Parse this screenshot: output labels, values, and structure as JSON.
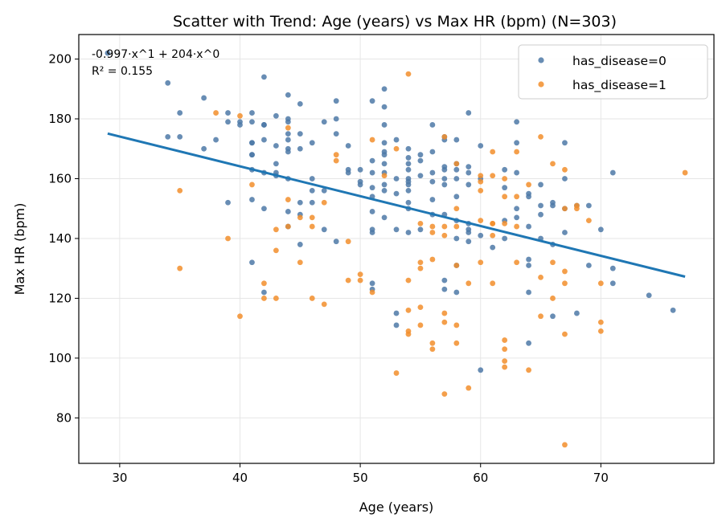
{
  "chart_data": {
    "type": "scatter",
    "title": "Scatter with Trend: Age (years) vs Max HR (bpm) (N=303)",
    "xlabel": "Age (years)",
    "ylabel": "Max HR (bpm)",
    "xlim": [
      26.6,
      79.4
    ],
    "ylim": [
      64.8,
      208.2
    ],
    "xticks": [
      30,
      40,
      50,
      60,
      70
    ],
    "yticks": [
      80,
      100,
      120,
      140,
      160,
      180,
      200
    ],
    "grid": true,
    "legend_position": "top-right",
    "annotation": [
      "-0.997·x^1 + 204·x^0",
      "R² = 0.155"
    ],
    "series": [
      {
        "name": "has_disease=0",
        "color": "#4e79a7",
        "points": [
          [
            29,
            202
          ],
          [
            34,
            192
          ],
          [
            34,
            174
          ],
          [
            35,
            182
          ],
          [
            35,
            174
          ],
          [
            37,
            187
          ],
          [
            37,
            170
          ],
          [
            38,
            173
          ],
          [
            39,
            182
          ],
          [
            39,
            179
          ],
          [
            39,
            152
          ],
          [
            40,
            179
          ],
          [
            40,
            178
          ],
          [
            41,
            182
          ],
          [
            41,
            179
          ],
          [
            41,
            172
          ],
          [
            41,
            172
          ],
          [
            41,
            168
          ],
          [
            41,
            168
          ],
          [
            41,
            163
          ],
          [
            41,
            153
          ],
          [
            41,
            132
          ],
          [
            42,
            194
          ],
          [
            42,
            178
          ],
          [
            42,
            178
          ],
          [
            42,
            173
          ],
          [
            42,
            162
          ],
          [
            42,
            150
          ],
          [
            42,
            122
          ],
          [
            43,
            181
          ],
          [
            43,
            171
          ],
          [
            43,
            165
          ],
          [
            43,
            162
          ],
          [
            43,
            161
          ],
          [
            44,
            188
          ],
          [
            44,
            180
          ],
          [
            44,
            179
          ],
          [
            44,
            175
          ],
          [
            44,
            173
          ],
          [
            44,
            170
          ],
          [
            44,
            169
          ],
          [
            44,
            160
          ],
          [
            44,
            149
          ],
          [
            44,
            144
          ],
          [
            45,
            185
          ],
          [
            45,
            175
          ],
          [
            45,
            170
          ],
          [
            45,
            152
          ],
          [
            45,
            148
          ],
          [
            45,
            138
          ],
          [
            46,
            172
          ],
          [
            46,
            160
          ],
          [
            46,
            156
          ],
          [
            46,
            152
          ],
          [
            47,
            179
          ],
          [
            47,
            156
          ],
          [
            47,
            143
          ],
          [
            48,
            186
          ],
          [
            48,
            180
          ],
          [
            48,
            175
          ],
          [
            48,
            139
          ],
          [
            49,
            171
          ],
          [
            49,
            163
          ],
          [
            49,
            162
          ],
          [
            50,
            163
          ],
          [
            50,
            159
          ],
          [
            50,
            158
          ],
          [
            51,
            186
          ],
          [
            51,
            166
          ],
          [
            51,
            162
          ],
          [
            51,
            157
          ],
          [
            51,
            154
          ],
          [
            51,
            149
          ],
          [
            51,
            143
          ],
          [
            51,
            142
          ],
          [
            51,
            125
          ],
          [
            51,
            123
          ],
          [
            52,
            190
          ],
          [
            52,
            184
          ],
          [
            52,
            178
          ],
          [
            52,
            172
          ],
          [
            52,
            169
          ],
          [
            52,
            168
          ],
          [
            52,
            165
          ],
          [
            52,
            162
          ],
          [
            52,
            158
          ],
          [
            52,
            156
          ],
          [
            52,
            147
          ],
          [
            53,
            173
          ],
          [
            53,
            160
          ],
          [
            53,
            155
          ],
          [
            53,
            143
          ],
          [
            53,
            115
          ],
          [
            53,
            111
          ],
          [
            54,
            170
          ],
          [
            54,
            167
          ],
          [
            54,
            165
          ],
          [
            54,
            163
          ],
          [
            54,
            160
          ],
          [
            54,
            159
          ],
          [
            54,
            158
          ],
          [
            54,
            156
          ],
          [
            54,
            152
          ],
          [
            54,
            150
          ],
          [
            54,
            142
          ],
          [
            55,
            168
          ],
          [
            55,
            166
          ],
          [
            55,
            161
          ],
          [
            55,
            143
          ],
          [
            56,
            178
          ],
          [
            56,
            169
          ],
          [
            56,
            162
          ],
          [
            56,
            159
          ],
          [
            56,
            153
          ],
          [
            56,
            148
          ],
          [
            57,
            174
          ],
          [
            57,
            173
          ],
          [
            57,
            164
          ],
          [
            57,
            163
          ],
          [
            57,
            160
          ],
          [
            57,
            158
          ],
          [
            57,
            148
          ],
          [
            57,
            126
          ],
          [
            57,
            123
          ],
          [
            58,
            173
          ],
          [
            58,
            165
          ],
          [
            58,
            163
          ],
          [
            58,
            160
          ],
          [
            58,
            154
          ],
          [
            58,
            146
          ],
          [
            58,
            140
          ],
          [
            58,
            131
          ],
          [
            58,
            122
          ],
          [
            59,
            182
          ],
          [
            59,
            164
          ],
          [
            59,
            162
          ],
          [
            59,
            158
          ],
          [
            59,
            145
          ],
          [
            59,
            143
          ],
          [
            59,
            142
          ],
          [
            59,
            139
          ],
          [
            60,
            171
          ],
          [
            60,
            160
          ],
          [
            60,
            141
          ],
          [
            60,
            96
          ],
          [
            61,
            137
          ],
          [
            62,
            163
          ],
          [
            62,
            157
          ],
          [
            62,
            146
          ],
          [
            62,
            140
          ],
          [
            63,
            179
          ],
          [
            63,
            172
          ],
          [
            63,
            162
          ],
          [
            63,
            150
          ],
          [
            63,
            147
          ],
          [
            64,
            155
          ],
          [
            64,
            154
          ],
          [
            64,
            144
          ],
          [
            64,
            133
          ],
          [
            64,
            131
          ],
          [
            64,
            122
          ],
          [
            64,
            105
          ],
          [
            65,
            158
          ],
          [
            65,
            151
          ],
          [
            65,
            148
          ],
          [
            65,
            140
          ],
          [
            66,
            152
          ],
          [
            66,
            151
          ],
          [
            66,
            138
          ],
          [
            66,
            114
          ],
          [
            67,
            172
          ],
          [
            67,
            160
          ],
          [
            67,
            150
          ],
          [
            67,
            142
          ],
          [
            68,
            151
          ],
          [
            68,
            115
          ],
          [
            69,
            151
          ],
          [
            69,
            131
          ],
          [
            70,
            143
          ],
          [
            71,
            162
          ],
          [
            71,
            130
          ],
          [
            71,
            125
          ],
          [
            74,
            121
          ],
          [
            76,
            116
          ]
        ]
      },
      {
        "name": "has_disease=1",
        "color": "#f28e2b",
        "points": [
          [
            35,
            156
          ],
          [
            35,
            130
          ],
          [
            38,
            182
          ],
          [
            39,
            140
          ],
          [
            40,
            181
          ],
          [
            40,
            114
          ],
          [
            41,
            158
          ],
          [
            42,
            125
          ],
          [
            42,
            120
          ],
          [
            43,
            143
          ],
          [
            43,
            136
          ],
          [
            43,
            120
          ],
          [
            44,
            177
          ],
          [
            44,
            153
          ],
          [
            44,
            144
          ],
          [
            45,
            147
          ],
          [
            45,
            132
          ],
          [
            46,
            147
          ],
          [
            46,
            144
          ],
          [
            46,
            120
          ],
          [
            47,
            152
          ],
          [
            47,
            118
          ],
          [
            48,
            168
          ],
          [
            48,
            166
          ],
          [
            49,
            139
          ],
          [
            49,
            126
          ],
          [
            50,
            128
          ],
          [
            50,
            126
          ],
          [
            51,
            173
          ],
          [
            51,
            122
          ],
          [
            52,
            161
          ],
          [
            53,
            170
          ],
          [
            53,
            95
          ],
          [
            54,
            195
          ],
          [
            54,
            126
          ],
          [
            54,
            116
          ],
          [
            54,
            109
          ],
          [
            54,
            108
          ],
          [
            55,
            145
          ],
          [
            55,
            132
          ],
          [
            55,
            130
          ],
          [
            55,
            117
          ],
          [
            55,
            111
          ],
          [
            56,
            144
          ],
          [
            56,
            142
          ],
          [
            56,
            133
          ],
          [
            56,
            105
          ],
          [
            56,
            103
          ],
          [
            57,
            174
          ],
          [
            57,
            144
          ],
          [
            57,
            141
          ],
          [
            57,
            115
          ],
          [
            57,
            112
          ],
          [
            57,
            88
          ],
          [
            58,
            165
          ],
          [
            58,
            150
          ],
          [
            58,
            144
          ],
          [
            58,
            131
          ],
          [
            58,
            111
          ],
          [
            58,
            105
          ],
          [
            59,
            125
          ],
          [
            59,
            90
          ],
          [
            60,
            161
          ],
          [
            60,
            159
          ],
          [
            60,
            156
          ],
          [
            60,
            146
          ],
          [
            60,
            132
          ],
          [
            61,
            169
          ],
          [
            61,
            161
          ],
          [
            61,
            145
          ],
          [
            61,
            145
          ],
          [
            61,
            141
          ],
          [
            61,
            125
          ],
          [
            62,
            160
          ],
          [
            62,
            154
          ],
          [
            62,
            145
          ],
          [
            62,
            106
          ],
          [
            62,
            103
          ],
          [
            62,
            99
          ],
          [
            62,
            97
          ],
          [
            63,
            169
          ],
          [
            63,
            154
          ],
          [
            63,
            144
          ],
          [
            63,
            132
          ],
          [
            64,
            158
          ],
          [
            64,
            96
          ],
          [
            65,
            174
          ],
          [
            65,
            127
          ],
          [
            65,
            114
          ],
          [
            66,
            165
          ],
          [
            66,
            132
          ],
          [
            66,
            120
          ],
          [
            67,
            163
          ],
          [
            67,
            150
          ],
          [
            67,
            129
          ],
          [
            67,
            125
          ],
          [
            67,
            108
          ],
          [
            67,
            71
          ],
          [
            68,
            151
          ],
          [
            68,
            150
          ],
          [
            69,
            146
          ],
          [
            70,
            125
          ],
          [
            70,
            112
          ],
          [
            70,
            109
          ],
          [
            77,
            162
          ]
        ]
      }
    ],
    "trend": {
      "coefficients": [
        -0.997,
        204
      ],
      "x_range": [
        29,
        77
      ],
      "color": "#1f77b4"
    }
  }
}
